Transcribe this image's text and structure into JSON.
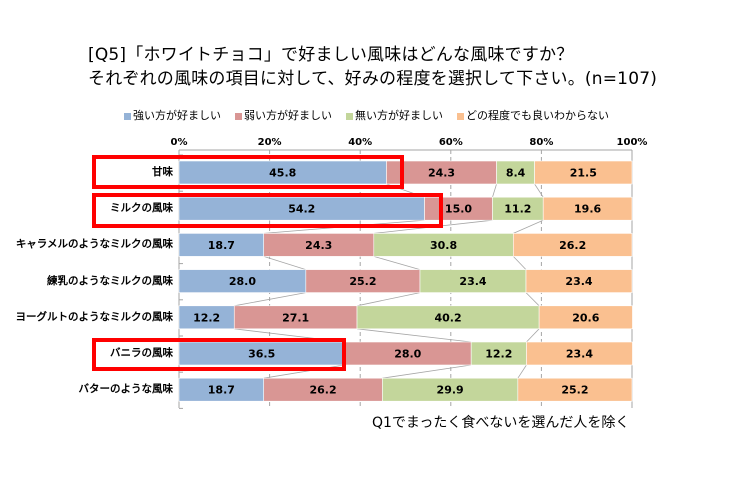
{
  "title": {
    "line1": "[Q5]「ホワイトチョコ」で好ましい風味はどんな風味ですか？",
    "line2": "それぞれの風味の項目に対して、好みの程度を選択して下さい。(n=107)"
  },
  "footnote": "Q1でまったく食べないを選んだ人を除く",
  "highlighted_categories": [
    "甘味",
    "ミルクの風味",
    "バニラの風味"
  ],
  "colors": {
    "series": [
      "#95B3D7",
      "#D99694",
      "#C3D69B",
      "#FAC090"
    ],
    "highlight": "#FF0000",
    "grid": "#A6A6A6"
  },
  "chart_data": {
    "type": "bar",
    "orientation": "horizontal",
    "stacked": "percent",
    "title": "[Q5]「ホワイトチョコ」で好ましい風味はどんな風味ですか？ それぞれの風味の項目に対して、好みの程度を選択して下さい。(n=107)",
    "xlabel": "",
    "ylabel": "",
    "xlim": [
      0,
      100
    ],
    "x_ticks": [
      "0%",
      "20%",
      "40%",
      "60%",
      "80%",
      "100%"
    ],
    "legend_position": "top",
    "grid": true,
    "categories": [
      "甘味",
      "ミルクの風味",
      "キャラメルのようなミルクの風味",
      "練乳のようなミルクの風味",
      "ヨーグルトのようなミルクの風味",
      "バニラの風味",
      "バターのような風味"
    ],
    "series": [
      {
        "name": "強い方が好ましい",
        "values": [
          45.8,
          54.2,
          18.7,
          28.0,
          12.2,
          36.5,
          18.7
        ]
      },
      {
        "name": "弱い方が好ましい",
        "values": [
          24.3,
          15.0,
          24.3,
          25.2,
          27.1,
          28.0,
          26.2
        ]
      },
      {
        "name": "無い方が好ましい",
        "values": [
          8.4,
          11.2,
          30.8,
          23.4,
          40.2,
          12.2,
          29.9
        ]
      },
      {
        "name": "どの程度でも良いわからない",
        "values": [
          21.5,
          19.6,
          26.2,
          23.4,
          20.6,
          23.4,
          25.2
        ]
      }
    ]
  }
}
